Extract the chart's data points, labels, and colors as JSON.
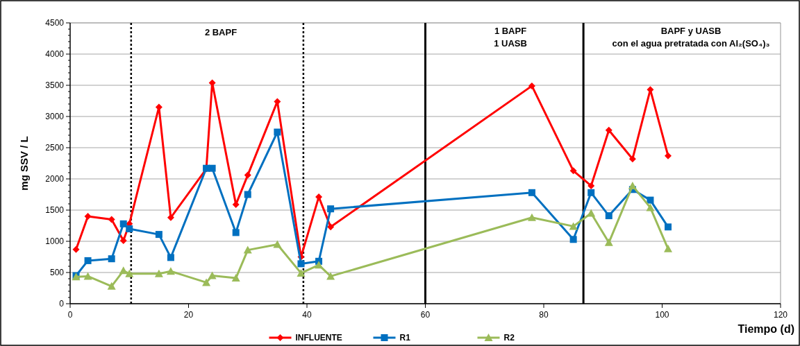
{
  "chart_data": {
    "type": "line",
    "xlabel": "Tiempo (d)",
    "ylabel": "mg SSV / L",
    "xlim": [
      0,
      120
    ],
    "xticks": [
      0,
      20,
      40,
      60,
      80,
      100,
      120
    ],
    "ylim": [
      0,
      4500
    ],
    "yticks": [
      0,
      500,
      1000,
      1500,
      2000,
      2500,
      3000,
      3500,
      4000,
      4500
    ],
    "grid": "y",
    "legend": "bottom",
    "line_style": "solid",
    "x": [
      1,
      3,
      7,
      9,
      10,
      15,
      17,
      23,
      24,
      28,
      30,
      35,
      39,
      42,
      44,
      78,
      85,
      88,
      91,
      95,
      98,
      101
    ],
    "series": [
      {
        "name": "INFLUENTE",
        "color": "#ff0000",
        "marker": "diamond",
        "values": [
          870,
          1400,
          1350,
          1010,
          1280,
          3150,
          1380,
          2160,
          3540,
          1590,
          2060,
          3240,
          750,
          1710,
          1230,
          3490,
          2130,
          1890,
          2780,
          2320,
          3430,
          2370
        ]
      },
      {
        "name": "R1",
        "color": "#0070c0",
        "marker": "square",
        "values": [
          450,
          690,
          720,
          1280,
          1200,
          1110,
          740,
          2170,
          2170,
          1140,
          1750,
          2750,
          640,
          680,
          1520,
          1780,
          1030,
          1780,
          1410,
          1830,
          1660,
          1230
        ]
      },
      {
        "name": "R2",
        "color": "#9bbb59",
        "marker": "triangle",
        "values": [
          430,
          440,
          280,
          530,
          480,
          480,
          520,
          340,
          450,
          410,
          860,
          950,
          490,
          620,
          440,
          1380,
          1240,
          1450,
          980,
          1890,
          1540,
          880
        ]
      }
    ],
    "ref_lines": [
      {
        "axis": "x",
        "value": 10.3,
        "color": "#000000",
        "line_style": "dotted"
      },
      {
        "axis": "x",
        "value": 39.4,
        "color": "#000000",
        "line_style": "dotted"
      },
      {
        "axis": "x",
        "value": 60,
        "color": "#000000",
        "line_style": "solid"
      },
      {
        "axis": "x",
        "value": 86.7,
        "color": "#000000",
        "line_style": "solid"
      }
    ],
    "annotations": [
      "2  BAPF",
      "1 BAPF",
      "1  UASB",
      "BAPF y UASB",
      "con el agua pretratada con Al₂(SO₄)₃"
    ]
  }
}
